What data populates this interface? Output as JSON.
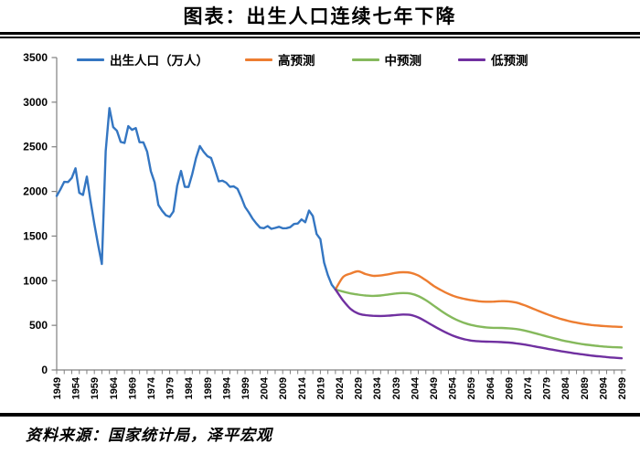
{
  "page": {
    "title": "图表：出生人口连续七年下降",
    "source": "资料来源：国家统计局，泽平宏观"
  },
  "colors": {
    "axis": "#808080",
    "tick_text": "#000000",
    "birth_blue": "#3476C2",
    "high_orange": "#ED7D31",
    "mid_green": "#85B95C",
    "low_purple": "#7030A0"
  },
  "chart_data": {
    "type": "line",
    "title": "图表：出生人口连续七年下降",
    "xlabel": "",
    "ylabel": "出生人口（万人）",
    "ylim": [
      0,
      3500
    ],
    "grid": false,
    "legend_position": "top",
    "y_ticks": [
      0,
      500,
      1000,
      1500,
      2000,
      2500,
      3000,
      3500
    ],
    "x_range": [
      1949,
      2099
    ],
    "x_tick_labels": [
      1949,
      1954,
      1959,
      1964,
      1969,
      1974,
      1979,
      1984,
      1989,
      1994,
      1999,
      2004,
      2009,
      2014,
      2019,
      2024,
      2029,
      2034,
      2039,
      2044,
      2049,
      2054,
      2059,
      2064,
      2069,
      2074,
      2079,
      2084,
      2089,
      2094,
      2099
    ],
    "series": [
      {
        "name": "出生人口（万人）",
        "color": "#3476C2",
        "x": [
          1949,
          1950,
          1951,
          1952,
          1953,
          1954,
          1955,
          1956,
          1957,
          1958,
          1959,
          1960,
          1961,
          1962,
          1963,
          1964,
          1965,
          1966,
          1967,
          1968,
          1969,
          1970,
          1971,
          1972,
          1973,
          1974,
          1975,
          1976,
          1977,
          1978,
          1979,
          1980,
          1981,
          1982,
          1983,
          1984,
          1985,
          1986,
          1987,
          1988,
          1989,
          1990,
          1991,
          1992,
          1993,
          1994,
          1995,
          1996,
          1997,
          1998,
          1999,
          2000,
          2001,
          2002,
          2003,
          2004,
          2005,
          2006,
          2007,
          2008,
          2009,
          2010,
          2011,
          2012,
          2013,
          2014,
          2015,
          2016,
          2017,
          2018,
          2019,
          2020,
          2021,
          2022,
          2023
        ],
        "values": [
          1950,
          2023,
          2107,
          2105,
          2151,
          2260,
          1984,
          1961,
          2167,
          1889,
          1635,
          1402,
          1187,
          2451,
          2934,
          2721,
          2679,
          2554,
          2543,
          2731,
          2690,
          2710,
          2551,
          2550,
          2447,
          2226,
          2102,
          1849,
          1783,
          1733,
          1715,
          1776,
          2064,
          2230,
          2052,
          2050,
          2196,
          2374,
          2508,
          2445,
          2396,
          2374,
          2250,
          2113,
          2120,
          2098,
          2052,
          2057,
          2028,
          1934,
          1827,
          1765,
          1696,
          1641,
          1594,
          1588,
          1612,
          1581,
          1591,
          1604,
          1587,
          1588,
          1600,
          1635,
          1640,
          1687,
          1655,
          1786,
          1723,
          1523,
          1465,
          1202,
          1062,
          956,
          902
        ]
      },
      {
        "name": "高预测",
        "color": "#ED7D31",
        "x": [
          2023,
          2025,
          2027,
          2029,
          2031,
          2033,
          2035,
          2037,
          2039,
          2041,
          2043,
          2045,
          2047,
          2049,
          2051,
          2053,
          2055,
          2057,
          2059,
          2061,
          2063,
          2065,
          2067,
          2069,
          2071,
          2073,
          2075,
          2077,
          2079,
          2081,
          2083,
          2085,
          2087,
          2089,
          2091,
          2093,
          2095,
          2097,
          2099
        ],
        "values": [
          902,
          1040,
          1080,
          1105,
          1075,
          1055,
          1058,
          1072,
          1088,
          1095,
          1088,
          1058,
          1005,
          945,
          895,
          852,
          820,
          798,
          782,
          770,
          764,
          766,
          771,
          769,
          755,
          728,
          695,
          660,
          627,
          597,
          570,
          548,
          530,
          515,
          504,
          496,
          490,
          485,
          482
        ]
      },
      {
        "name": "中预测",
        "color": "#85B95C",
        "x": [
          2023,
          2025,
          2027,
          2029,
          2031,
          2033,
          2035,
          2037,
          2039,
          2041,
          2043,
          2045,
          2047,
          2049,
          2051,
          2053,
          2055,
          2057,
          2059,
          2061,
          2063,
          2065,
          2067,
          2069,
          2071,
          2073,
          2075,
          2077,
          2079,
          2081,
          2083,
          2085,
          2087,
          2089,
          2091,
          2093,
          2095,
          2097,
          2099
        ],
        "values": [
          902,
          878,
          858,
          844,
          834,
          830,
          834,
          845,
          857,
          862,
          856,
          828,
          782,
          724,
          664,
          610,
          565,
          530,
          505,
          488,
          477,
          472,
          471,
          467,
          458,
          443,
          423,
          400,
          377,
          355,
          334,
          316,
          300,
          287,
          276,
          267,
          260,
          255,
          252
        ]
      },
      {
        "name": "低预测",
        "color": "#7030A0",
        "x": [
          2023,
          2025,
          2027,
          2029,
          2031,
          2033,
          2035,
          2037,
          2039,
          2041,
          2043,
          2045,
          2047,
          2049,
          2051,
          2053,
          2055,
          2057,
          2059,
          2061,
          2063,
          2065,
          2067,
          2069,
          2071,
          2073,
          2075,
          2077,
          2079,
          2081,
          2083,
          2085,
          2087,
          2089,
          2091,
          2093,
          2095,
          2097,
          2099
        ],
        "values": [
          902,
          780,
          685,
          633,
          614,
          607,
          605,
          608,
          615,
          621,
          616,
          588,
          543,
          494,
          448,
          406,
          371,
          346,
          330,
          321,
          317,
          315,
          312,
          307,
          298,
          286,
          271,
          255,
          239,
          224,
          209,
          196,
          183,
          172,
          161,
          152,
          144,
          137,
          131
        ]
      }
    ]
  }
}
